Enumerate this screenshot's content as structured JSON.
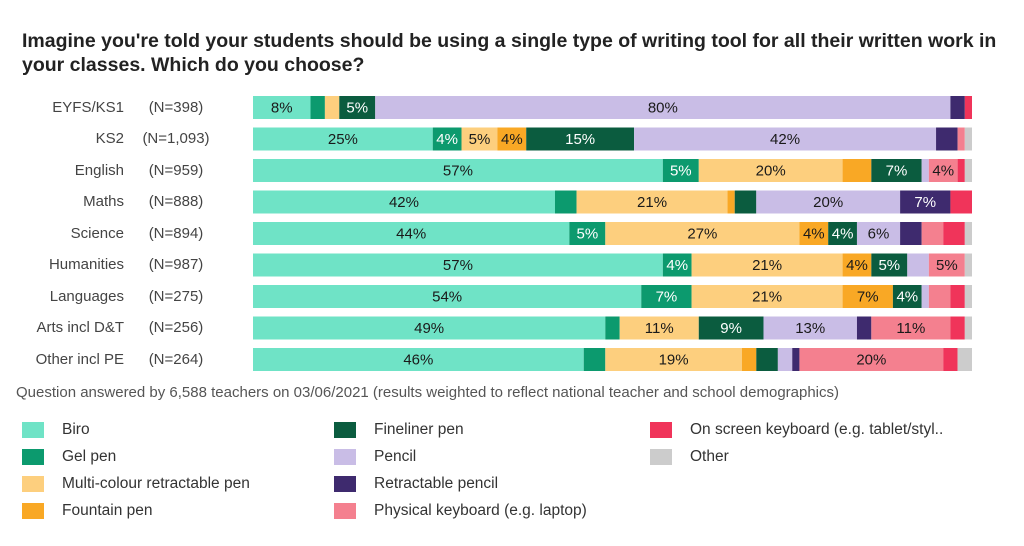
{
  "title": "Imagine you're told your students should be using a single type of writing tool for all their written work in your classes. Which do you choose?",
  "subtitle": "Question answered by 6,588 teachers on 03/06/2021 (results weighted to reflect national teacher and school demographics)",
  "chart_data": {
    "type": "bar",
    "orientation": "horizontal",
    "stacked": "100%",
    "title": "Imagine you're told your students should be using a single type of writing tool for all their written work in your classes. Which do you choose?",
    "categories": [
      "EYFS/KS1",
      "KS2",
      "English",
      "Maths",
      "Science",
      "Humanities",
      "Languages",
      "Arts incl D&T",
      "Other incl PE"
    ],
    "n_labels": [
      "(N=398)",
      "(N=1,093)",
      "(N=959)",
      "(N=888)",
      "(N=894)",
      "(N=987)",
      "(N=275)",
      "(N=256)",
      "(N=264)"
    ],
    "legend_position": "bottom",
    "series": [
      {
        "name": "Biro",
        "color": "#6fe3c6",
        "values": [
          8,
          25,
          57,
          42,
          44,
          57,
          54,
          49,
          46
        ],
        "labels": [
          "8%",
          "25%",
          "57%",
          "42%",
          "44%",
          "57%",
          "54%",
          "49%",
          "46%"
        ]
      },
      {
        "name": "Gel pen",
        "color": "#0c9a6e",
        "values": [
          2,
          4,
          5,
          3,
          5,
          4,
          7,
          2,
          3
        ],
        "labels": [
          "",
          "4%",
          "5%",
          "",
          "5%",
          "4%",
          "7%",
          "",
          ""
        ]
      },
      {
        "name": "Multi-colour retractable pen",
        "color": "#fdcf7e",
        "values": [
          2,
          5,
          20,
          21,
          27,
          21,
          21,
          11,
          19
        ],
        "labels": [
          "",
          "5%",
          "20%",
          "21%",
          "27%",
          "21%",
          "21%",
          "11%",
          "19%"
        ]
      },
      {
        "name": "Fountain pen",
        "color": "#f9a825",
        "values": [
          0,
          4,
          4,
          1,
          4,
          4,
          7,
          0,
          2
        ],
        "labels": [
          "",
          "4%",
          "",
          "",
          "4%",
          "4%",
          "7%",
          "",
          ""
        ]
      },
      {
        "name": "Fineliner pen",
        "color": "#0b5c3f",
        "values": [
          5,
          15,
          7,
          3,
          4,
          5,
          4,
          9,
          3
        ],
        "labels": [
          "5%",
          "15%",
          "7%",
          "",
          "4%",
          "5%",
          "4%",
          "9%",
          ""
        ]
      },
      {
        "name": "Pencil",
        "color": "#c9bde6",
        "values": [
          80,
          42,
          1,
          20,
          6,
          3,
          1,
          13,
          2
        ],
        "labels": [
          "80%",
          "42%",
          "",
          "20%",
          "6%",
          "",
          "",
          "13%",
          ""
        ]
      },
      {
        "name": "Retractable pencil",
        "color": "#3e2a6e",
        "values": [
          2,
          3,
          0,
          7,
          3,
          0,
          0,
          2,
          1
        ],
        "labels": [
          "",
          "",
          "",
          "7%",
          "",
          "",
          "",
          "",
          ""
        ]
      },
      {
        "name": "Physical keyboard (e.g. laptop)",
        "color": "#f4808f",
        "values": [
          0,
          1,
          4,
          0,
          3,
          5,
          3,
          11,
          20
        ],
        "labels": [
          "",
          "",
          "4%",
          "",
          "",
          "5%",
          "",
          "11%",
          "20%"
        ]
      },
      {
        "name": "On screen keyboard (e.g. tablet/styl..",
        "color": "#f0345a",
        "values": [
          1,
          0,
          1,
          3,
          3,
          0,
          2,
          2,
          2
        ],
        "labels": [
          "",
          "",
          "",
          "",
          "",
          "",
          "",
          "",
          ""
        ]
      },
      {
        "name": "Other",
        "color": "#cccccc",
        "values": [
          0,
          1,
          1,
          0,
          1,
          1,
          1,
          1,
          2
        ],
        "labels": [
          "",
          "",
          "",
          "",
          "",
          "",
          "",
          "",
          ""
        ]
      }
    ],
    "label_text_colors": {
      "light": "#1a1a1a",
      "dark": "#ffffff"
    },
    "dark_series": [
      "Gel pen",
      "Fineliner pen",
      "Retractable pencil"
    ]
  }
}
